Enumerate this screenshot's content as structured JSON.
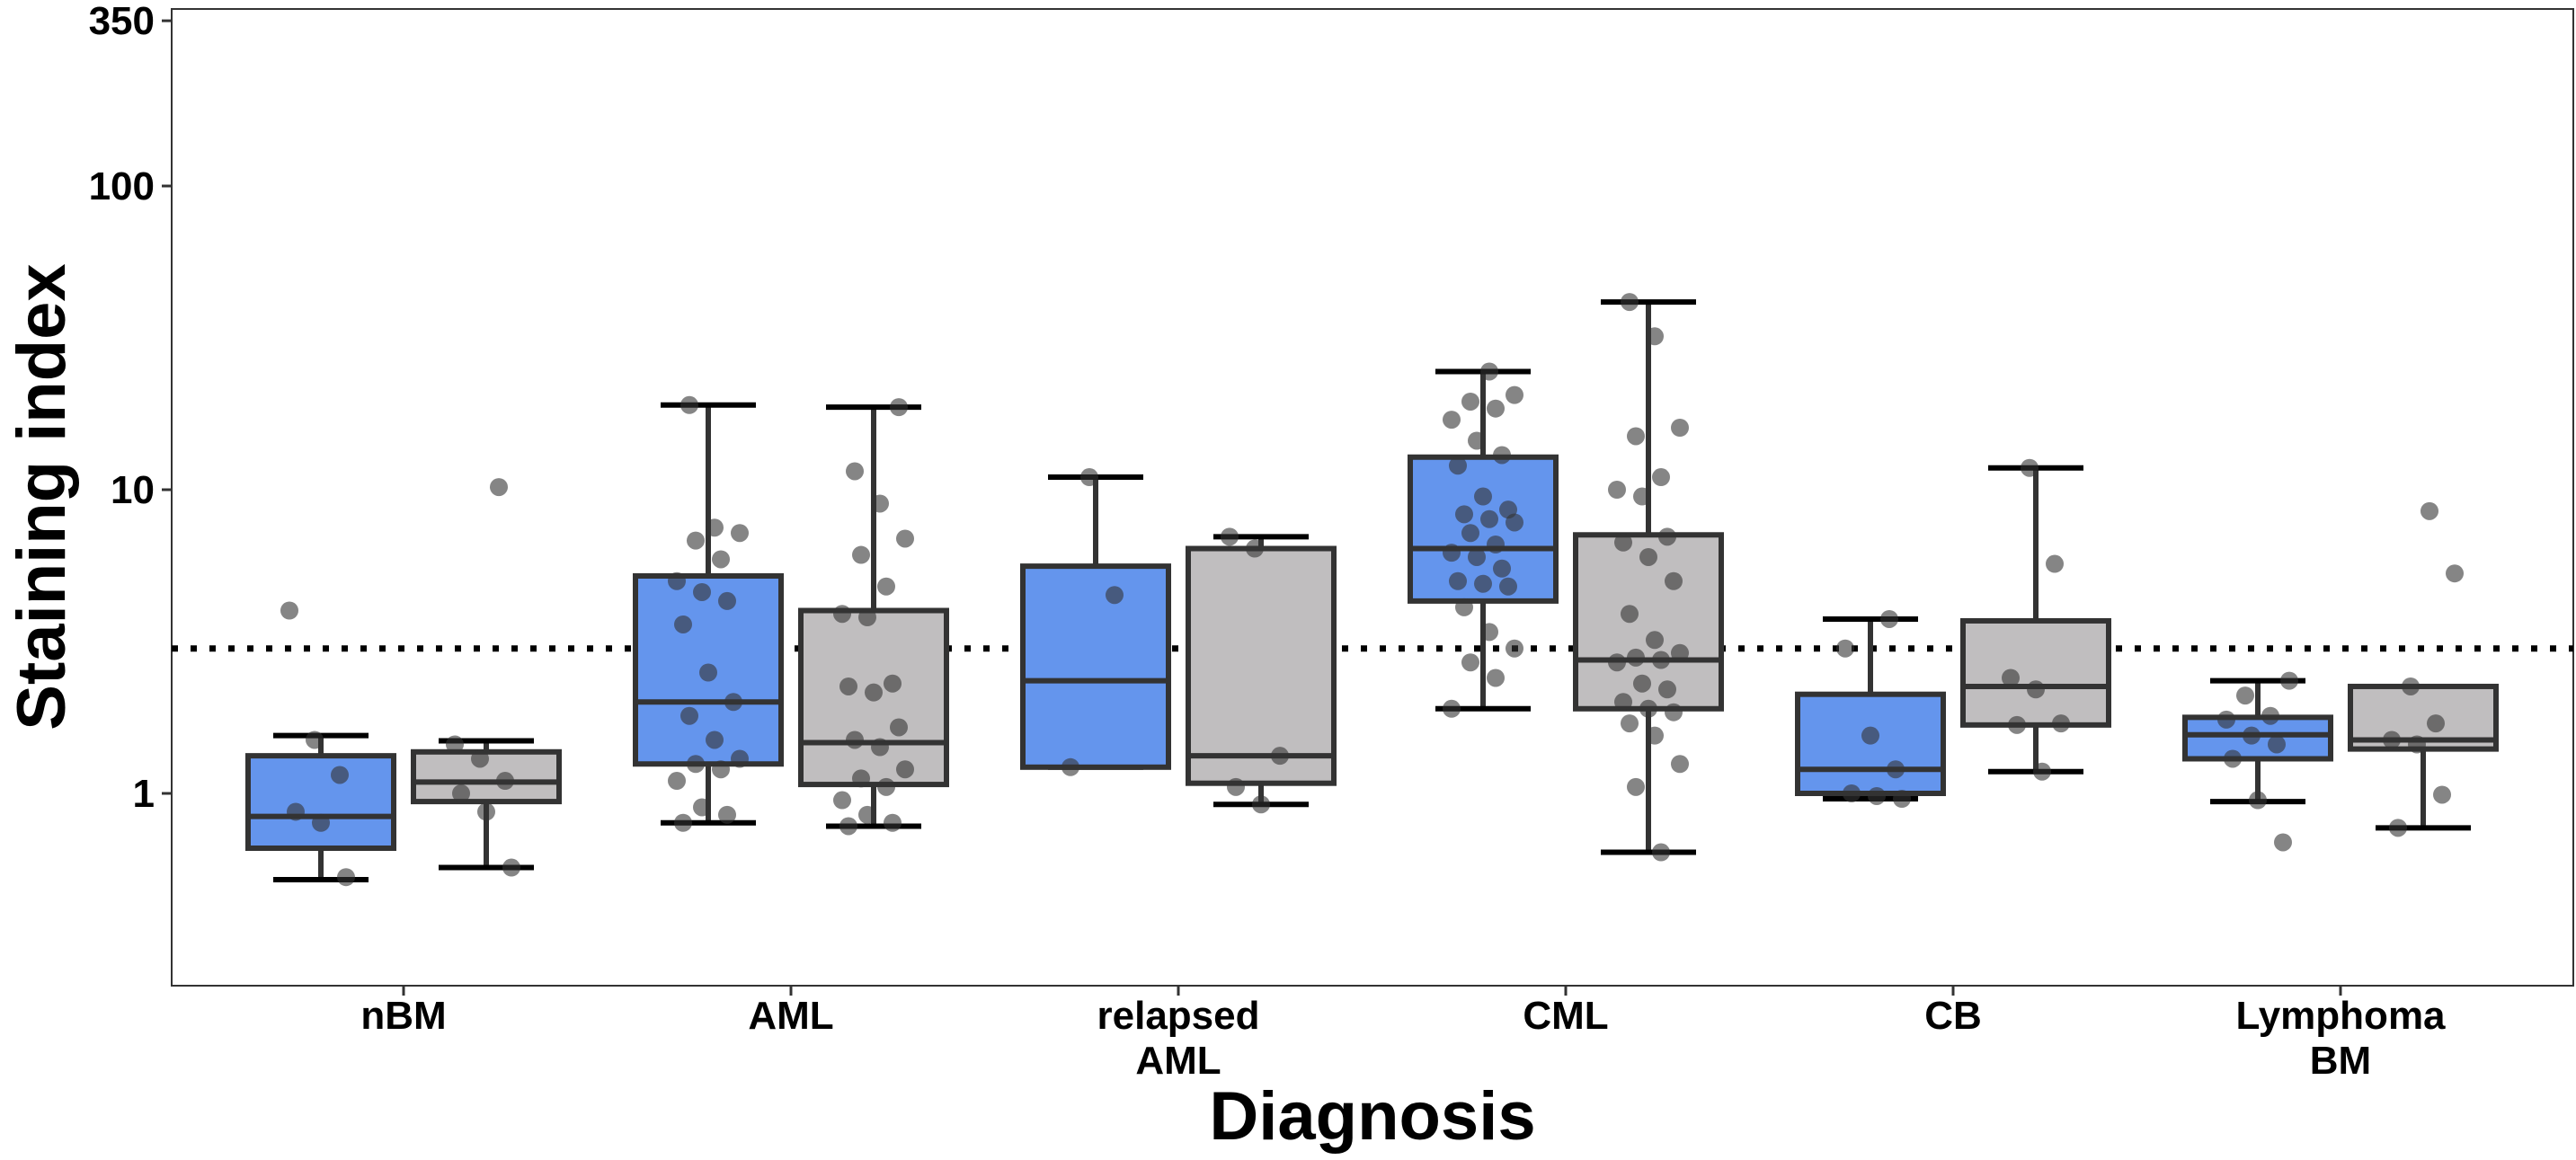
{
  "chart_data": {
    "type": "boxplot",
    "xlabel": "Diagnosis",
    "ylabel": "Staining index",
    "y_scale": "log",
    "ylim": [
      0.25,
      350
    ],
    "yticks": [
      1,
      10,
      100,
      350
    ],
    "ytick_labels": [
      "1",
      "10",
      "100",
      "350"
    ],
    "threshold_line": {
      "y": 3.0,
      "style": "dotted"
    },
    "series_colors": [
      "#6495ED",
      "#C0BEBF"
    ],
    "point_color": "#333333",
    "categories": [
      {
        "label": [
          "nBM"
        ],
        "boxes": [
          {
            "q1": 0.66,
            "median": 0.84,
            "q3": 1.33,
            "whisker_low": 0.52,
            "whisker_high": 1.55,
            "points": [
              4.0,
              1.5,
              1.15,
              0.87,
              0.8,
              0.53
            ]
          },
          {
            "q1": 0.94,
            "median": 1.09,
            "q3": 1.37,
            "whisker_low": 0.57,
            "whisker_high": 1.49,
            "points": [
              10.2,
              1.45,
              1.3,
              1.1,
              1.0,
              0.87,
              0.57
            ]
          }
        ]
      },
      {
        "label": [
          "AML"
        ],
        "boxes": [
          {
            "q1": 1.25,
            "median": 2.0,
            "q3": 5.2,
            "whisker_low": 0.8,
            "whisker_high": 19.0,
            "points": [
              19.0,
              7.5,
              7.2,
              6.8,
              5.9,
              5.0,
              4.6,
              4.3,
              3.6,
              2.5,
              2.0,
              1.8,
              1.5,
              1.3,
              1.25,
              1.2,
              1.1,
              0.9,
              0.85,
              0.8
            ]
          },
          {
            "q1": 1.07,
            "median": 1.47,
            "q3": 4.0,
            "whisker_low": 0.78,
            "whisker_high": 18.7,
            "points": [
              18.7,
              11.5,
              9.0,
              6.9,
              6.1,
              4.8,
              3.9,
              3.8,
              2.3,
              2.25,
              2.15,
              1.65,
              1.5,
              1.42,
              1.2,
              1.12,
              1.05,
              0.95,
              0.85,
              0.8,
              0.78
            ]
          }
        ]
      },
      {
        "label": [
          "relapsed",
          "AML"
        ],
        "boxes": [
          {
            "q1": 1.22,
            "median": 2.35,
            "q3": 5.6,
            "whisker_low": 1.22,
            "whisker_high": 11.0,
            "points": [
              11.0,
              4.5,
              1.22
            ]
          },
          {
            "q1": 1.08,
            "median": 1.33,
            "q3": 6.4,
            "whisker_low": 0.92,
            "whisker_high": 7.0,
            "points": [
              7.0,
              6.4,
              1.33,
              1.05,
              0.92
            ]
          }
        ]
      },
      {
        "label": [
          "CML"
        ],
        "boxes": [
          {
            "q1": 4.3,
            "median": 6.4,
            "q3": 12.8,
            "whisker_low": 1.9,
            "whisker_high": 24.5,
            "points": [
              24.5,
              20.5,
              19.5,
              18.5,
              17.0,
              14.5,
              13.0,
              12.0,
              9.5,
              8.6,
              8.3,
              8.0,
              7.8,
              7.2,
              6.6,
              6.2,
              6.0,
              5.5,
              5.0,
              4.9,
              4.8,
              4.1,
              3.4,
              3.0,
              2.7,
              2.4,
              1.9
            ]
          },
          {
            "q1": 1.9,
            "median": 2.75,
            "q3": 7.1,
            "whisker_low": 0.64,
            "whisker_high": 41.5,
            "points": [
              41.5,
              32.0,
              16.0,
              15.0,
              11.0,
              10.0,
              9.5,
              7.0,
              6.7,
              6.0,
              5.0,
              3.9,
              3.2,
              2.9,
              2.8,
              2.75,
              2.7,
              2.3,
              2.2,
              2.0,
              1.9,
              1.85,
              1.7,
              1.55,
              1.25,
              1.05,
              0.64
            ]
          }
        ]
      },
      {
        "label": [
          "CB"
        ],
        "boxes": [
          {
            "q1": 1.0,
            "median": 1.2,
            "q3": 2.12,
            "whisker_low": 0.96,
            "whisker_high": 3.75,
            "points": [
              3.75,
              3.0,
              1.55,
              1.2,
              1.0,
              0.98,
              0.96
            ]
          },
          {
            "q1": 1.68,
            "median": 2.25,
            "q3": 3.7,
            "whisker_low": 1.18,
            "whisker_high": 11.8,
            "points": [
              11.8,
              5.7,
              2.4,
              2.2,
              1.7,
              1.68,
              1.18
            ]
          }
        ]
      },
      {
        "label": [
          "Lymphoma",
          "BM"
        ],
        "boxes": [
          {
            "q1": 1.3,
            "median": 1.56,
            "q3": 1.78,
            "whisker_low": 0.94,
            "whisker_high": 2.35,
            "points": [
              2.35,
              2.1,
              1.8,
              1.75,
              1.55,
              1.45,
              1.3,
              0.95,
              0.69
            ]
          },
          {
            "q1": 1.4,
            "median": 1.5,
            "q3": 2.25,
            "whisker_low": 0.77,
            "whisker_high": 2.25,
            "points": [
              8.5,
              5.3,
              2.25,
              1.7,
              1.5,
              1.45,
              0.99,
              0.77
            ]
          }
        ]
      }
    ]
  }
}
